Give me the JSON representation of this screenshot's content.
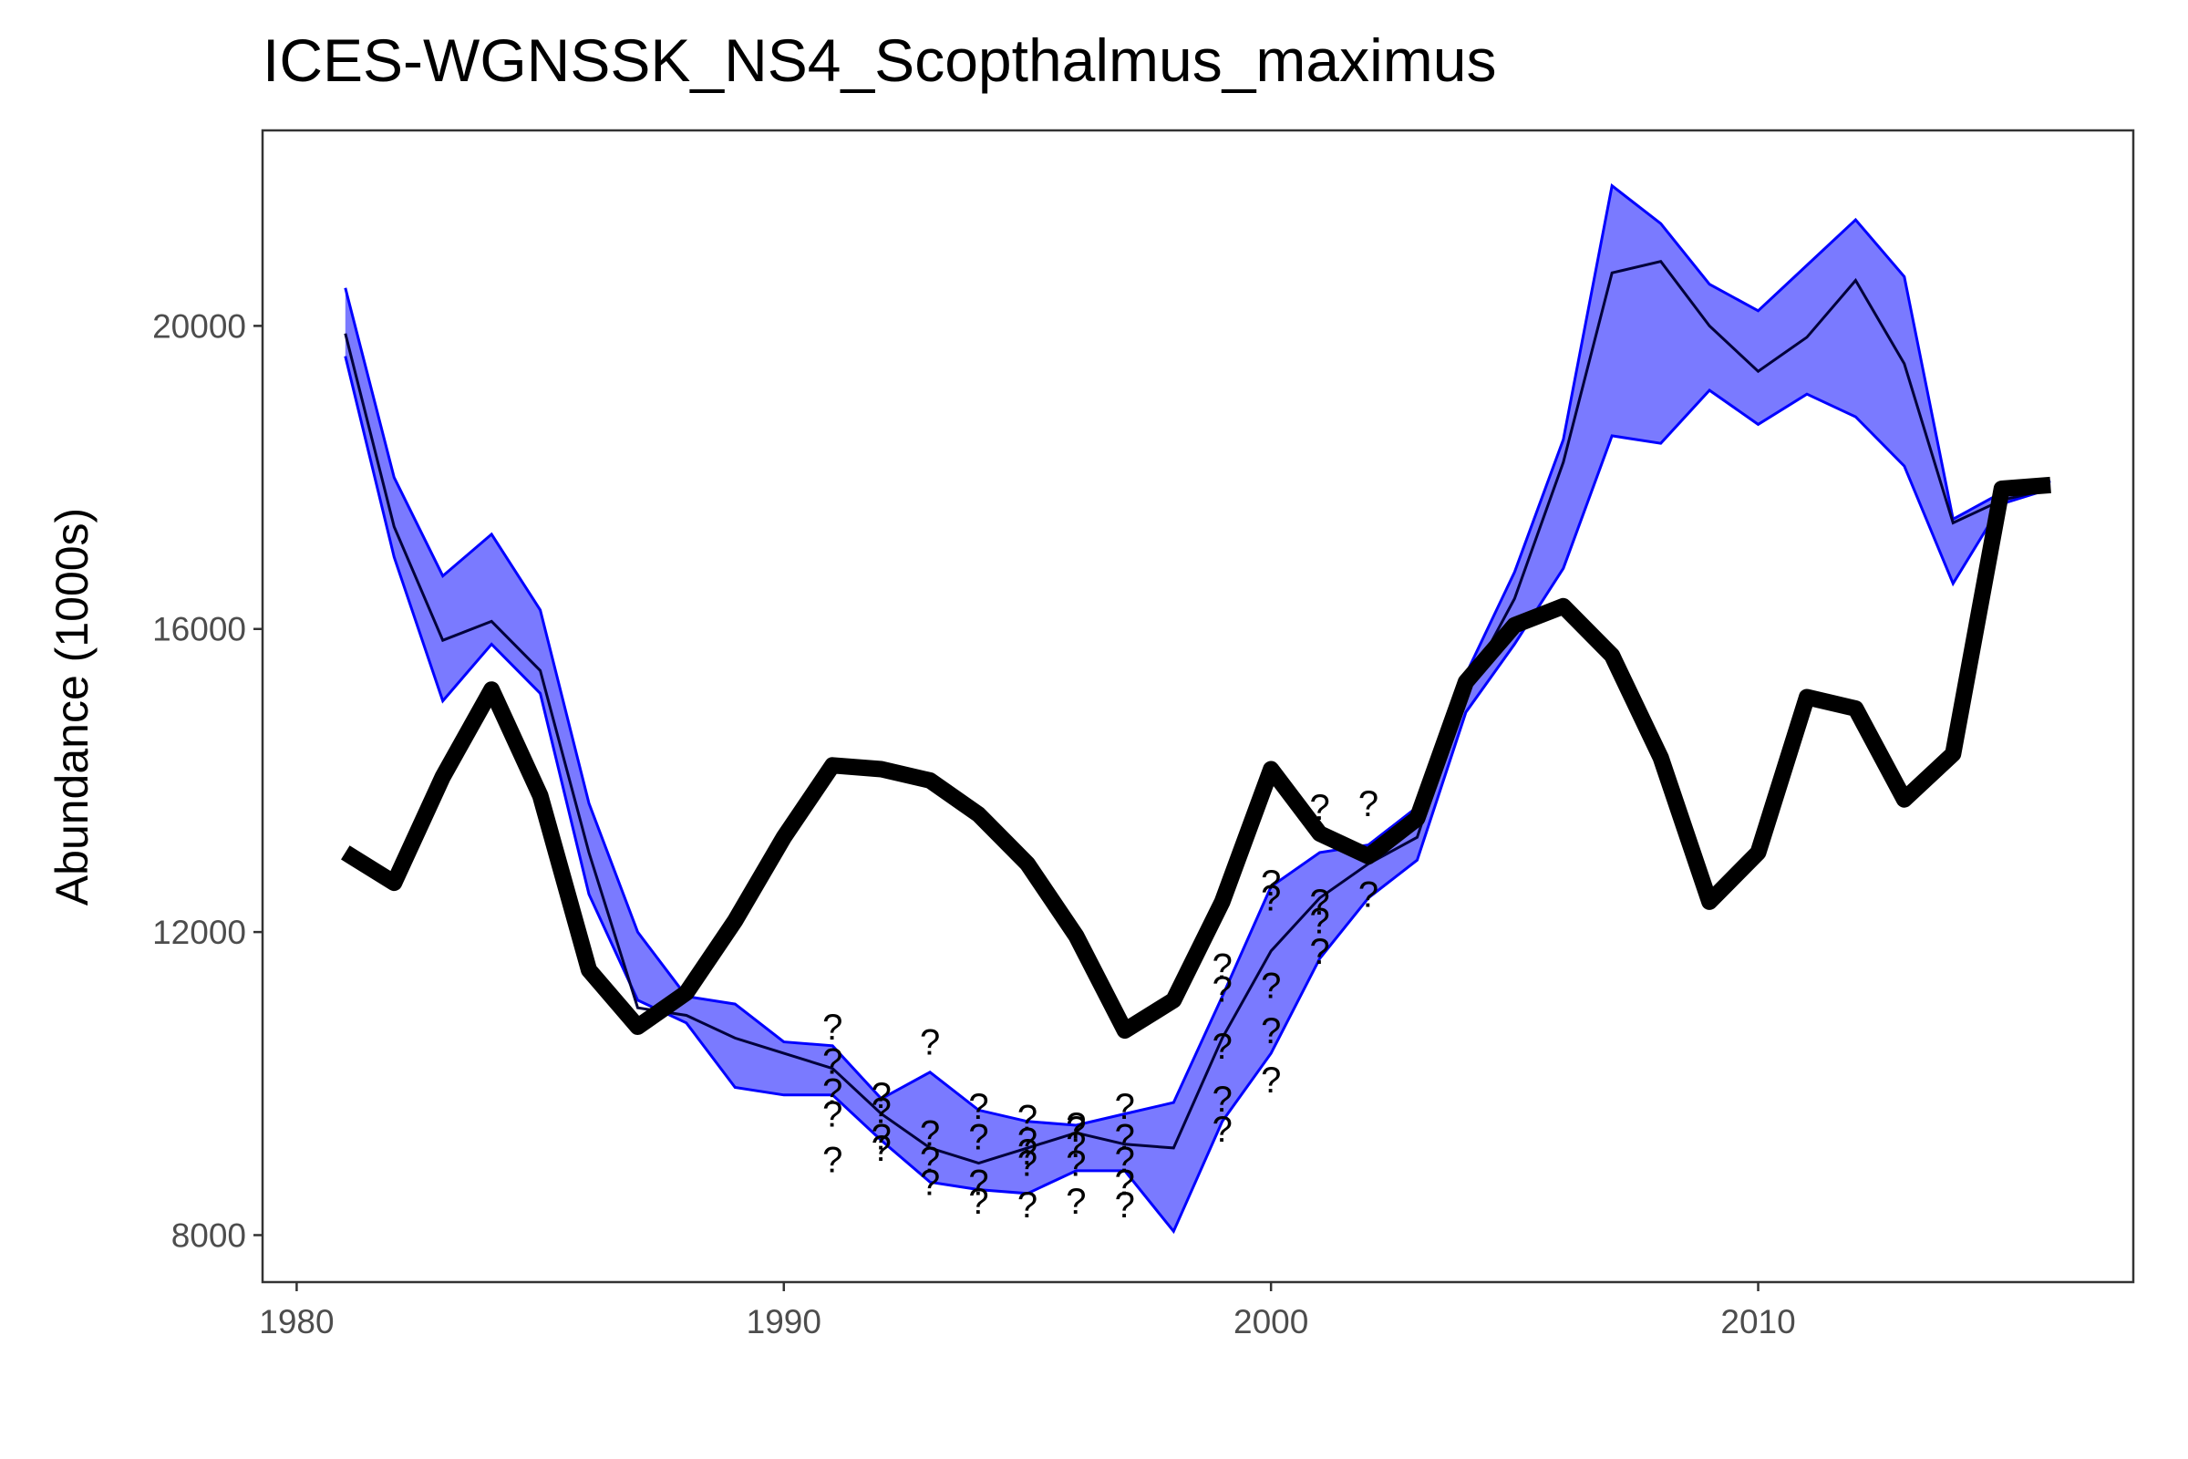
{
  "chart_data": {
    "type": "line",
    "title": "ICES-WGNSSK_NS4_Scopthalmus_maximus",
    "xlabel": "",
    "ylabel": "Abundance (1000s)",
    "xlim": [
      1979.3,
      2017.7
    ],
    "ylim": [
      7380,
      22580
    ],
    "x_ticks": [
      1980,
      1990,
      2000,
      2010
    ],
    "y_ticks": [
      8000,
      12000,
      16000,
      20000
    ],
    "grid": false,
    "legend": "none",
    "colors": {
      "band_fill": "#7a7aff",
      "band_edge": "#0000ff",
      "median": "#00003a",
      "observed": "#000000"
    },
    "series": [
      {
        "role": "observed",
        "x": [
          1981,
          1982,
          1983,
          1984,
          1985,
          1986,
          1987,
          1988,
          1989,
          1990,
          1991,
          1992,
          1993,
          1994,
          1995,
          1996,
          1997,
          1998,
          1999,
          2000,
          2001,
          2002,
          2003,
          2004,
          2005,
          2006,
          2007,
          2008,
          2009,
          2010,
          2011,
          2012,
          2013,
          2014,
          2015,
          2016
        ],
        "values": [
          13050,
          12650,
          14050,
          15200,
          13800,
          11500,
          10750,
          11200,
          12150,
          13250,
          14200,
          14150,
          14000,
          13550,
          12900,
          11950,
          10700,
          11100,
          12400,
          14150,
          13300,
          13000,
          13500,
          15300,
          16050,
          16300,
          15650,
          14300,
          12400,
          13050,
          15100,
          14950,
          13750,
          14350,
          17850,
          17900
        ]
      },
      {
        "role": "median",
        "x": [
          1981,
          1982,
          1983,
          1984,
          1985,
          1986,
          1987,
          1988,
          1989,
          1990,
          1991,
          1992,
          1993,
          1994,
          1995,
          1996,
          1997,
          1998,
          1999,
          2000,
          2001,
          2002,
          2003,
          2004,
          2005,
          2006,
          2007,
          2008,
          2009,
          2010,
          2011,
          2012,
          2013,
          2014,
          2015,
          2016
        ],
        "values": [
          19900,
          17350,
          15850,
          16100,
          15450,
          13050,
          11000,
          10900,
          10600,
          10400,
          10200,
          9600,
          9150,
          8950,
          9150,
          9350,
          9200,
          9150,
          10600,
          11750,
          12450,
          12900,
          13250,
          15200,
          16400,
          18200,
          20700,
          20850,
          20000,
          19400,
          19850,
          20600,
          19500,
          17400,
          17700,
          17850
        ]
      },
      {
        "role": "upper",
        "x": [
          1981,
          1982,
          1983,
          1984,
          1985,
          1986,
          1987,
          1988,
          1989,
          1990,
          1991,
          1992,
          1993,
          1994,
          1995,
          1996,
          1997,
          1998,
          1999,
          2000,
          2001,
          2002,
          2003,
          2004,
          2005,
          2006,
          2007,
          2008,
          2009,
          2010,
          2011,
          2012,
          2013,
          2014,
          2015,
          2016
        ],
        "values": [
          20500,
          18000,
          16700,
          17250,
          16250,
          13700,
          12000,
          11150,
          11050,
          10550,
          10500,
          9800,
          10150,
          9650,
          9500,
          9450,
          9600,
          9750,
          11150,
          12600,
          13050,
          13150,
          13650,
          15400,
          16750,
          18500,
          21850,
          21350,
          20550,
          20200,
          20800,
          21400,
          20650,
          17450,
          17800,
          17950
        ]
      },
      {
        "role": "lower",
        "x": [
          1981,
          1982,
          1983,
          1984,
          1985,
          1986,
          1987,
          1988,
          1989,
          1990,
          1991,
          1992,
          1993,
          1994,
          1995,
          1996,
          1997,
          1998,
          1999,
          2000,
          2001,
          2002,
          2003,
          2004,
          2005,
          2006,
          2007,
          2008,
          2009,
          2010,
          2011,
          2012,
          2013,
          2014,
          2015,
          2016
        ],
        "values": [
          19600,
          16950,
          15050,
          15800,
          15150,
          12500,
          11100,
          10800,
          9950,
          9850,
          9850,
          9250,
          8700,
          8600,
          8550,
          8850,
          8850,
          8050,
          9500,
          10400,
          11650,
          12450,
          12950,
          14900,
          15800,
          16800,
          18550,
          18450,
          19150,
          18700,
          19100,
          18800,
          18150,
          16600,
          17650,
          17850
        ]
      }
    ],
    "annotations": [
      {
        "text": "?",
        "points": [
          [
            1991,
            10750
          ],
          [
            1991,
            10300
          ],
          [
            1991,
            9900
          ],
          [
            1991,
            9600
          ],
          [
            1991,
            9000
          ],
          [
            1992,
            9850
          ],
          [
            1992,
            9650
          ],
          [
            1992,
            9300
          ],
          [
            1992,
            9150
          ],
          [
            1993,
            10550
          ],
          [
            1993,
            9350
          ],
          [
            1993,
            9000
          ],
          [
            1993,
            8700
          ],
          [
            1994,
            9700
          ],
          [
            1994,
            9300
          ],
          [
            1994,
            8700
          ],
          [
            1994,
            8450
          ],
          [
            1995,
            9550
          ],
          [
            1995,
            9250
          ],
          [
            1995,
            9100
          ],
          [
            1995,
            8950
          ],
          [
            1995,
            8400
          ],
          [
            1996,
            9450
          ],
          [
            1996,
            9400
          ],
          [
            1996,
            9200
          ],
          [
            1996,
            8950
          ],
          [
            1996,
            8450
          ],
          [
            1997,
            9700
          ],
          [
            1997,
            9300
          ],
          [
            1997,
            9000
          ],
          [
            1997,
            8700
          ],
          [
            1997,
            8400
          ],
          [
            1999,
            11550
          ],
          [
            1999,
            11250
          ],
          [
            1999,
            10500
          ],
          [
            1999,
            9800
          ],
          [
            1999,
            9400
          ],
          [
            2000,
            12650
          ],
          [
            2000,
            12450
          ],
          [
            2000,
            11300
          ],
          [
            2000,
            10700
          ],
          [
            2000,
            10050
          ],
          [
            2001,
            13650
          ],
          [
            2001,
            12400
          ],
          [
            2001,
            12150
          ],
          [
            2001,
            11750
          ],
          [
            2002,
            13700
          ],
          [
            2002,
            12500
          ]
        ]
      }
    ]
  }
}
